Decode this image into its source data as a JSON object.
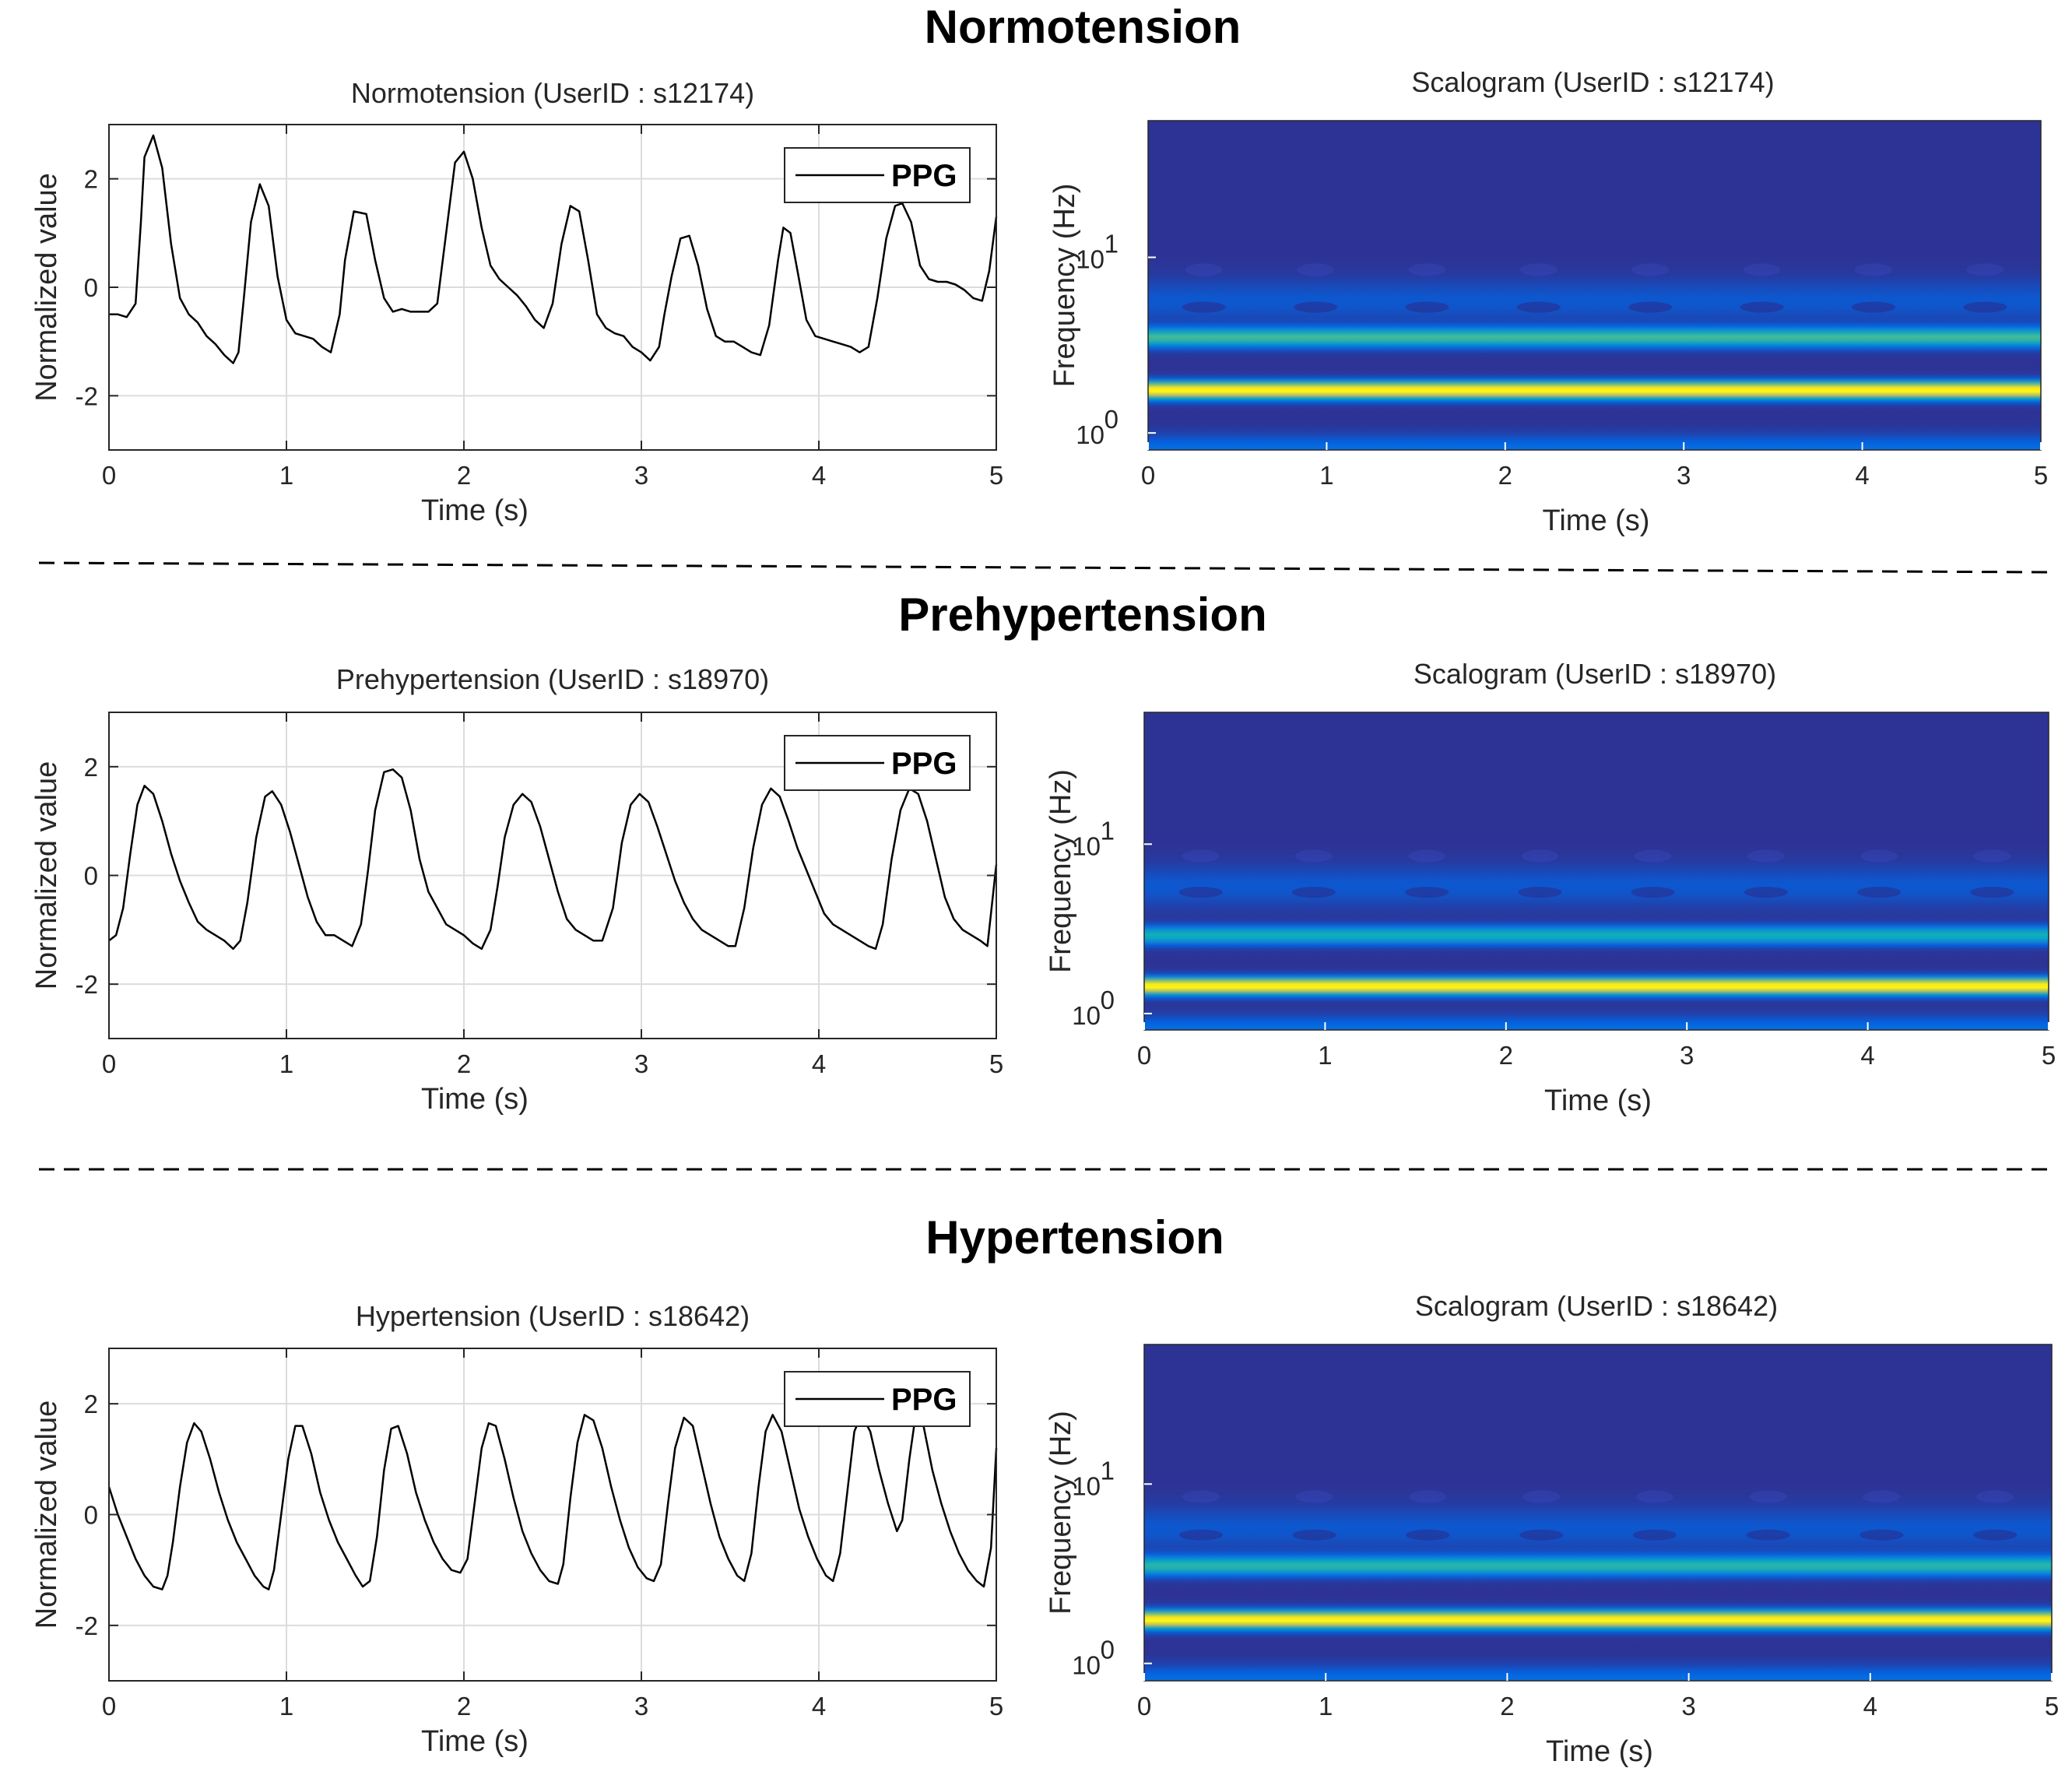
{
  "colors": {
    "ppg_line": "#000000",
    "grid": "#dcdcdc",
    "axes": "#262626",
    "divider": "#000000"
  },
  "sections": [
    {
      "title": "Normotension"
    },
    {
      "title": "Prehypertension"
    },
    {
      "title": "Hypertension"
    }
  ],
  "chart_data": [
    {
      "type": "line",
      "title": "Normotension (UserID : s12174)",
      "xlabel": "Time (s)",
      "ylabel": "Normalized value",
      "xlim": [
        0,
        5
      ],
      "ylim": [
        -3,
        3
      ],
      "xticks": [
        "0",
        "1",
        "2",
        "3",
        "4",
        "5"
      ],
      "yticks": [
        "-2",
        "0",
        "2"
      ],
      "grid": true,
      "legend_position": "top-right",
      "series": [
        {
          "name": "PPG",
          "x": [
            0,
            0.05,
            0.1,
            0.15,
            0.18,
            0.2,
            0.25,
            0.3,
            0.35,
            0.4,
            0.45,
            0.5,
            0.55,
            0.6,
            0.65,
            0.7,
            0.73,
            0.76,
            0.8,
            0.85,
            0.9,
            0.95,
            1.0,
            1.05,
            1.1,
            1.15,
            1.2,
            1.25,
            1.3,
            1.33,
            1.38,
            1.45,
            1.5,
            1.55,
            1.6,
            1.65,
            1.7,
            1.75,
            1.8,
            1.85,
            1.9,
            1.95,
            2.0,
            2.05,
            2.1,
            2.15,
            2.2,
            2.25,
            2.3,
            2.35,
            2.4,
            2.45,
            2.5,
            2.55,
            2.6,
            2.65,
            2.7,
            2.75,
            2.8,
            2.85,
            2.9,
            2.95,
            3.0,
            3.05,
            3.1,
            3.13,
            3.17,
            3.22,
            3.27,
            3.32,
            3.37,
            3.42,
            3.47,
            3.52,
            3.57,
            3.62,
            3.67,
            3.72,
            3.77,
            3.8,
            3.84,
            3.88,
            3.93,
            3.98,
            4.03,
            4.08,
            4.13,
            4.18,
            4.23,
            4.28,
            4.33,
            4.38,
            4.43,
            4.47,
            4.52,
            4.57,
            4.62,
            4.67,
            4.72,
            4.77,
            4.82,
            4.87,
            4.92,
            4.96,
            5.0
          ],
          "y": [
            -0.5,
            -0.5,
            -0.55,
            -0.3,
            1.2,
            2.4,
            2.8,
            2.2,
            0.8,
            -0.2,
            -0.5,
            -0.65,
            -0.9,
            -1.05,
            -1.25,
            -1.4,
            -1.2,
            -0.2,
            1.2,
            1.9,
            1.5,
            0.2,
            -0.6,
            -0.85,
            -0.9,
            -0.95,
            -1.1,
            -1.2,
            -0.5,
            0.5,
            1.4,
            1.35,
            0.5,
            -0.2,
            -0.45,
            -0.4,
            -0.45,
            -0.45,
            -0.45,
            -0.3,
            1.0,
            2.3,
            2.5,
            2.0,
            1.1,
            0.4,
            0.15,
            0.0,
            -0.15,
            -0.35,
            -0.6,
            -0.75,
            -0.3,
            0.8,
            1.5,
            1.4,
            0.5,
            -0.5,
            -0.75,
            -0.85,
            -0.9,
            -1.1,
            -1.2,
            -1.35,
            -1.1,
            -0.5,
            0.2,
            0.9,
            0.95,
            0.4,
            -0.4,
            -0.9,
            -1.0,
            -1.0,
            -1.1,
            -1.2,
            -1.25,
            -0.7,
            0.5,
            1.1,
            1.0,
            0.3,
            -0.6,
            -0.9,
            -0.95,
            -1.0,
            -1.05,
            -1.1,
            -1.2,
            -1.1,
            -0.2,
            0.9,
            1.5,
            1.55,
            1.2,
            0.4,
            0.15,
            0.1,
            0.1,
            0.05,
            -0.05,
            -0.2,
            -0.25,
            0.3,
            1.3
          ]
        }
      ]
    },
    {
      "type": "heatmap",
      "title": "Scalogram (UserID : s12174)",
      "xlabel": "Time (s)",
      "ylabel": "Frequency (Hz)",
      "xlim": [
        0,
        5
      ],
      "yscale": "log",
      "ylim": [
        0.8,
        60
      ],
      "xticks": [
        "0",
        "1",
        "2",
        "3",
        "4",
        "5"
      ],
      "yticks": [
        {
          "base": "10",
          "exp": "1"
        },
        {
          "base": "10",
          "exp": "0"
        }
      ],
      "ridges": [
        {
          "freq_hz": 1.75,
          "magnitude": 1.0
        },
        {
          "freq_hz": 3.5,
          "magnitude": 0.5
        }
      ]
    },
    {
      "type": "line",
      "title": "Prehypertension (UserID : s18970)",
      "xlabel": "Time (s)",
      "ylabel": "Normalized value",
      "xlim": [
        0,
        5
      ],
      "ylim": [
        -3,
        3
      ],
      "xticks": [
        "0",
        "1",
        "2",
        "3",
        "4",
        "5"
      ],
      "yticks": [
        "-2",
        "0",
        "2"
      ],
      "grid": true,
      "legend_position": "top-right",
      "series": [
        {
          "name": "PPG",
          "x": [
            0,
            0.04,
            0.08,
            0.12,
            0.16,
            0.2,
            0.25,
            0.3,
            0.35,
            0.4,
            0.45,
            0.5,
            0.55,
            0.6,
            0.65,
            0.7,
            0.74,
            0.78,
            0.83,
            0.88,
            0.92,
            0.97,
            1.02,
            1.07,
            1.12,
            1.17,
            1.22,
            1.27,
            1.32,
            1.37,
            1.42,
            1.46,
            1.5,
            1.55,
            1.6,
            1.65,
            1.7,
            1.75,
            1.8,
            1.85,
            1.9,
            1.95,
            2.0,
            2.05,
            2.1,
            2.15,
            2.19,
            2.23,
            2.28,
            2.33,
            2.38,
            2.43,
            2.48,
            2.53,
            2.58,
            2.63,
            2.68,
            2.73,
            2.78,
            2.84,
            2.89,
            2.94,
            2.99,
            3.04,
            3.09,
            3.14,
            3.19,
            3.24,
            3.29,
            3.34,
            3.39,
            3.44,
            3.49,
            3.53,
            3.58,
            3.63,
            3.68,
            3.73,
            3.78,
            3.83,
            3.88,
            3.93,
            3.98,
            4.03,
            4.08,
            4.13,
            4.18,
            4.23,
            4.28,
            4.32,
            4.36,
            4.41,
            4.46,
            4.51,
            4.56,
            4.61,
            4.66,
            4.71,
            4.76,
            4.81,
            4.86,
            4.91,
            4.95,
            5.0
          ],
          "y": [
            -1.2,
            -1.1,
            -0.6,
            0.4,
            1.3,
            1.65,
            1.5,
            1.0,
            0.4,
            -0.1,
            -0.5,
            -0.85,
            -1.0,
            -1.1,
            -1.2,
            -1.35,
            -1.2,
            -0.5,
            0.7,
            1.45,
            1.55,
            1.3,
            0.8,
            0.2,
            -0.4,
            -0.85,
            -1.1,
            -1.1,
            -1.2,
            -1.3,
            -0.9,
            0.1,
            1.2,
            1.9,
            1.95,
            1.8,
            1.2,
            0.3,
            -0.3,
            -0.6,
            -0.9,
            -1.0,
            -1.1,
            -1.25,
            -1.35,
            -1.0,
            -0.2,
            0.7,
            1.3,
            1.5,
            1.35,
            0.9,
            0.3,
            -0.3,
            -0.8,
            -1.0,
            -1.1,
            -1.2,
            -1.2,
            -0.6,
            0.6,
            1.3,
            1.5,
            1.35,
            0.9,
            0.4,
            -0.1,
            -0.5,
            -0.8,
            -1.0,
            -1.1,
            -1.2,
            -1.3,
            -1.3,
            -0.6,
            0.5,
            1.3,
            1.6,
            1.45,
            1.0,
            0.5,
            0.1,
            -0.3,
            -0.7,
            -0.9,
            -1.0,
            -1.1,
            -1.2,
            -1.3,
            -1.35,
            -0.9,
            0.3,
            1.2,
            1.6,
            1.5,
            1.0,
            0.3,
            -0.4,
            -0.8,
            -1.0,
            -1.1,
            -1.2,
            -1.3,
            0.2
          ]
        }
      ]
    },
    {
      "type": "heatmap",
      "title": "Scalogram (UserID : s18970)",
      "xlabel": "Time (s)",
      "ylabel": "Frequency (Hz)",
      "xlim": [
        0,
        5
      ],
      "yscale": "log",
      "ylim": [
        0.8,
        60
      ],
      "xticks": [
        "0",
        "1",
        "2",
        "3",
        "4",
        "5"
      ],
      "yticks": [
        {
          "base": "10",
          "exp": "1"
        },
        {
          "base": "10",
          "exp": "0"
        }
      ],
      "ridges": [
        {
          "freq_hz": 1.45,
          "magnitude": 1.0
        },
        {
          "freq_hz": 2.9,
          "magnitude": 0.4
        }
      ]
    },
    {
      "type": "line",
      "title": "Hypertension (UserID : s18642)",
      "xlabel": "Time (s)",
      "ylabel": "Normalized value",
      "xlim": [
        0,
        5
      ],
      "ylim": [
        -3,
        3
      ],
      "xticks": [
        "0",
        "1",
        "2",
        "3",
        "4",
        "5"
      ],
      "yticks": [
        "-2",
        "0",
        "2"
      ],
      "grid": true,
      "legend_position": "top-right",
      "series": [
        {
          "name": "PPG",
          "x": [
            0,
            0.05,
            0.1,
            0.15,
            0.2,
            0.25,
            0.3,
            0.33,
            0.36,
            0.4,
            0.44,
            0.48,
            0.52,
            0.57,
            0.62,
            0.67,
            0.72,
            0.77,
            0.82,
            0.87,
            0.9,
            0.93,
            0.97,
            1.01,
            1.05,
            1.09,
            1.14,
            1.19,
            1.24,
            1.29,
            1.34,
            1.39,
            1.43,
            1.47,
            1.51,
            1.55,
            1.59,
            1.63,
            1.68,
            1.73,
            1.78,
            1.83,
            1.88,
            1.93,
            1.98,
            2.02,
            2.06,
            2.1,
            2.14,
            2.18,
            2.23,
            2.28,
            2.33,
            2.38,
            2.43,
            2.48,
            2.53,
            2.56,
            2.6,
            2.64,
            2.68,
            2.73,
            2.78,
            2.83,
            2.88,
            2.93,
            2.98,
            3.03,
            3.07,
            3.11,
            3.15,
            3.19,
            3.24,
            3.29,
            3.34,
            3.39,
            3.44,
            3.49,
            3.54,
            3.58,
            3.62,
            3.66,
            3.7,
            3.74,
            3.79,
            3.84,
            3.89,
            3.94,
            3.99,
            4.04,
            4.08,
            4.12,
            4.16,
            4.2,
            4.24,
            4.29,
            4.34,
            4.39,
            4.44,
            4.47,
            4.51,
            4.55,
            4.59,
            4.64,
            4.69,
            4.74,
            4.79,
            4.84,
            4.89,
            4.93,
            4.97,
            5.0
          ],
          "y": [
            0.5,
            0.0,
            -0.4,
            -0.8,
            -1.1,
            -1.3,
            -1.35,
            -1.1,
            -0.5,
            0.5,
            1.3,
            1.65,
            1.5,
            1.0,
            0.4,
            -0.1,
            -0.5,
            -0.8,
            -1.1,
            -1.3,
            -1.35,
            -1.0,
            0.0,
            1.0,
            1.6,
            1.6,
            1.1,
            0.4,
            -0.1,
            -0.5,
            -0.8,
            -1.1,
            -1.3,
            -1.2,
            -0.4,
            0.8,
            1.55,
            1.6,
            1.1,
            0.4,
            -0.1,
            -0.5,
            -0.8,
            -1.0,
            -1.05,
            -0.8,
            0.2,
            1.2,
            1.65,
            1.6,
            1.0,
            0.3,
            -0.3,
            -0.7,
            -1.0,
            -1.2,
            -1.25,
            -0.9,
            0.3,
            1.3,
            1.8,
            1.7,
            1.2,
            0.5,
            -0.1,
            -0.6,
            -0.95,
            -1.15,
            -1.2,
            -0.9,
            0.2,
            1.2,
            1.75,
            1.6,
            0.9,
            0.2,
            -0.4,
            -0.8,
            -1.1,
            -1.2,
            -0.7,
            0.5,
            1.5,
            1.8,
            1.5,
            0.8,
            0.1,
            -0.4,
            -0.8,
            -1.1,
            -1.2,
            -0.7,
            0.4,
            1.5,
            1.8,
            1.5,
            0.8,
            0.2,
            -0.3,
            -0.1,
            1.0,
            1.9,
            1.6,
            0.8,
            0.2,
            -0.3,
            -0.7,
            -1.0,
            -1.2,
            -1.3,
            -0.6,
            1.2
          ]
        }
      ]
    },
    {
      "type": "heatmap",
      "title": "Scalogram (UserID : s18642)",
      "xlabel": "Time (s)",
      "ylabel": "Frequency (Hz)",
      "xlim": [
        0,
        5
      ],
      "yscale": "log",
      "ylim": [
        0.8,
        60
      ],
      "xticks": [
        "0",
        "1",
        "2",
        "3",
        "4",
        "5"
      ],
      "yticks": [
        {
          "base": "10",
          "exp": "1"
        },
        {
          "base": "10",
          "exp": "0"
        }
      ],
      "ridges": [
        {
          "freq_hz": 1.75,
          "magnitude": 1.0
        },
        {
          "freq_hz": 3.5,
          "magnitude": 0.45
        }
      ]
    }
  ]
}
